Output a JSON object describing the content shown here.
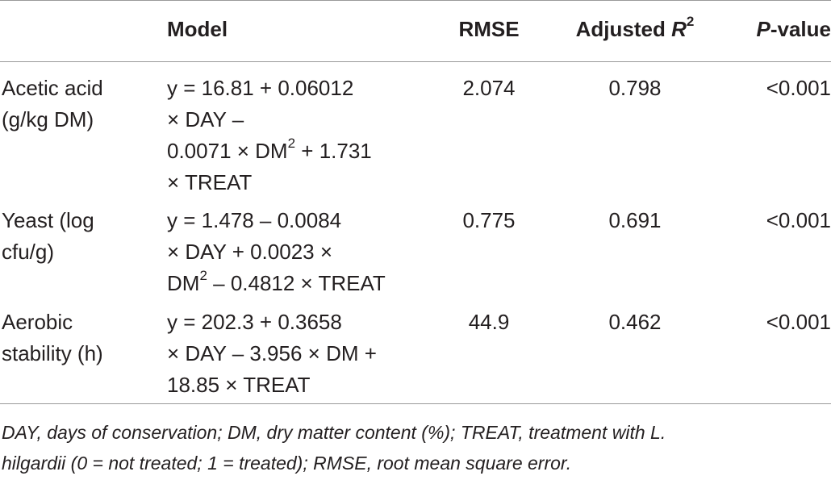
{
  "header": {
    "model": "Model",
    "rmse": "RMSE",
    "adjusted_r2_prefix": "Adjusted ",
    "adjusted_r2_symbol": "R",
    "adjusted_r2_power": "2",
    "pvalue_symbol": "P",
    "pvalue_suffix": "-value"
  },
  "rows": [
    {
      "name_lines": [
        "Acetic acid",
        "(g/kg DM)"
      ],
      "model_line1": "y = 16.81 + 0.06012",
      "model_line2": "× DAY –",
      "model_line3_pre": "0.0071 × DM",
      "model_line3_sup": "2",
      "model_line3_post": " + 1.731",
      "model_line4": "× TREAT",
      "rmse": "2.074",
      "adjusted_r2": "0.798",
      "p_value": "<0.001"
    },
    {
      "name_lines": [
        "Yeast (log",
        "cfu/g)"
      ],
      "model_line1": "y = 1.478 – 0.0084",
      "model_line2": "× DAY + 0.0023 ×",
      "model_line3_pre": "DM",
      "model_line3_sup": "2",
      "model_line3_post": " – 0.4812 × TREAT",
      "rmse": "0.775",
      "adjusted_r2": "0.691",
      "p_value": "<0.001"
    },
    {
      "name_lines": [
        "Aerobic",
        "stability (h)"
      ],
      "model_line1": "y = 202.3 + 0.3658",
      "model_line2": "× DAY – 3.956 × DM +",
      "model_line3": "18.85 × TREAT",
      "rmse": "44.9",
      "adjusted_r2": "0.462",
      "p_value": "<0.001"
    }
  ],
  "footnote": {
    "line1": "DAY, days of conservation; DM, dry matter content (%); TREAT, treatment with L.",
    "line2": "hilgardii (0 = not treated; 1 = treated); RMSE, root mean square error."
  }
}
